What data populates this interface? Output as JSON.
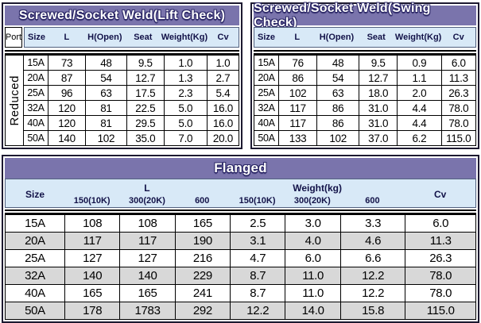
{
  "colors": {
    "band_purple": "#7a74ac",
    "header_blue": "#d8e9f7",
    "header_text": "#121248",
    "stripe_gray": "#d8d8d8",
    "grid_line": "#000000"
  },
  "tables": {
    "lift_check": {
      "title": "Screwed/Socket Weld(Lift Check)",
      "port_label": "Port",
      "side_label": "Reduced",
      "columns": [
        "Size",
        "L",
        "H(Open)",
        "Seat",
        "Weight(Kg)",
        "Cv"
      ],
      "rows": [
        [
          "15A",
          "73",
          "48",
          "9.5",
          "1.0",
          "1.0"
        ],
        [
          "20A",
          "87",
          "54",
          "12.7",
          "1.3",
          "2.7"
        ],
        [
          "25A",
          "96",
          "63",
          "17.5",
          "2.3",
          "5.4"
        ],
        [
          "32A",
          "120",
          "81",
          "22.5",
          "5.0",
          "16.0"
        ],
        [
          "40A",
          "120",
          "81",
          "29.5",
          "5.0",
          "16.0"
        ],
        [
          "50A",
          "140",
          "102",
          "35.0",
          "7.0",
          "20.0"
        ]
      ]
    },
    "swing_check": {
      "title": "Screwed/Socket Weld(Swing Check)",
      "columns": [
        "Size",
        "L",
        "H(Open)",
        "Seat",
        "Weight(Kg)",
        "Cv"
      ],
      "rows": [
        [
          "15A",
          "76",
          "48",
          "9.5",
          "0.9",
          "6.0"
        ],
        [
          "20A",
          "86",
          "54",
          "12.7",
          "1.1",
          "11.3"
        ],
        [
          "25A",
          "102",
          "63",
          "18.0",
          "2.0",
          "26.3"
        ],
        [
          "32A",
          "117",
          "86",
          "31.0",
          "4.4",
          "78.0"
        ],
        [
          "40A",
          "117",
          "86",
          "31.0",
          "4.4",
          "78.0"
        ],
        [
          "50A",
          "133",
          "102",
          "37.0",
          "6.2",
          "115.0"
        ]
      ]
    },
    "flanged": {
      "title": "Flanged",
      "size_header": "Size",
      "l_group": "L",
      "weight_group": "Weight(kg)",
      "cv_header": "Cv",
      "sub_columns": [
        "150(10K)",
        "300(20K)",
        "600",
        "150(10K)",
        "300(20K)",
        "600"
      ],
      "rows": [
        [
          "15A",
          "108",
          "108",
          "165",
          "2.5",
          "3.0",
          "3.3",
          "6.0"
        ],
        [
          "20A",
          "117",
          "117",
          "190",
          "3.1",
          "4.0",
          "4.6",
          "11.3"
        ],
        [
          "25A",
          "127",
          "127",
          "216",
          "4.7",
          "6.0",
          "6.6",
          "26.3"
        ],
        [
          "32A",
          "140",
          "140",
          "229",
          "8.7",
          "11.0",
          "12.2",
          "78.0"
        ],
        [
          "40A",
          "165",
          "165",
          "241",
          "8.7",
          "11.0",
          "12.2",
          "78.0"
        ],
        [
          "50A",
          "178",
          "1783",
          "292",
          "12.2",
          "14.0",
          "15.8",
          "115.0"
        ]
      ]
    }
  }
}
